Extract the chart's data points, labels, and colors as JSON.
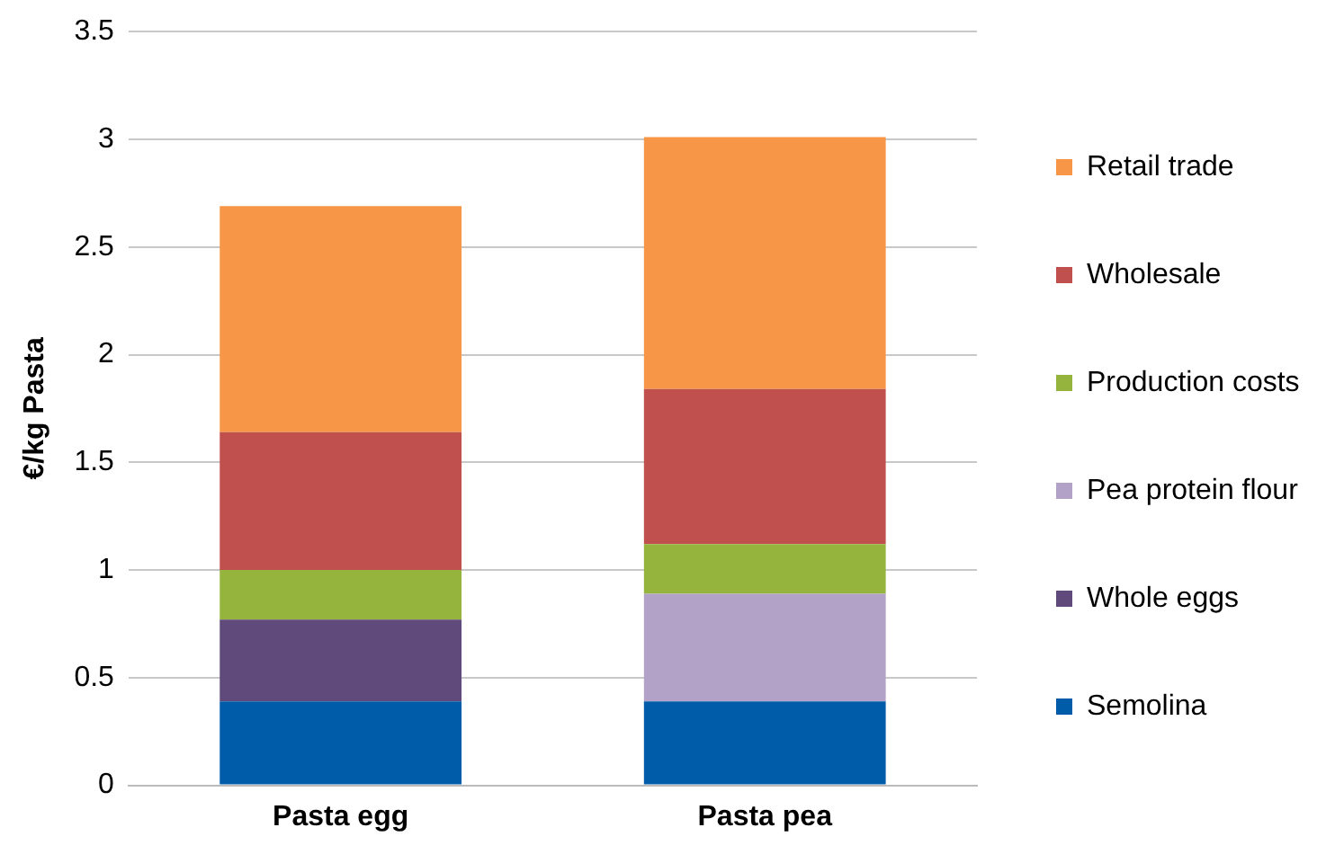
{
  "chart_data": {
    "type": "bar",
    "stacked": true,
    "ylabel": "€/kg Pasta",
    "categories": [
      "Pasta egg",
      "Pasta pea"
    ],
    "series": [
      {
        "name": "Semolina",
        "color": "#005ca8",
        "values": [
          0.39,
          0.39
        ]
      },
      {
        "name": "Whole eggs",
        "color": "#604a7b",
        "values": [
          0.38,
          null
        ]
      },
      {
        "name": "Pea protein flour",
        "color": "#b2a2c7",
        "values": [
          null,
          0.5
        ]
      },
      {
        "name": "Production costs",
        "color": "#94b43e",
        "values": [
          0.23,
          0.23
        ]
      },
      {
        "name": "Wholesale",
        "color": "#c0504d",
        "values": [
          0.64,
          0.72
        ]
      },
      {
        "name": "Retail trade",
        "color": "#f79646",
        "values": [
          1.05,
          1.17
        ]
      }
    ],
    "ylim": [
      0,
      3.5
    ],
    "yticks": [
      0,
      0.5,
      1,
      1.5,
      2,
      2.5,
      3,
      3.5
    ],
    "grid": "y",
    "legend": "right"
  }
}
